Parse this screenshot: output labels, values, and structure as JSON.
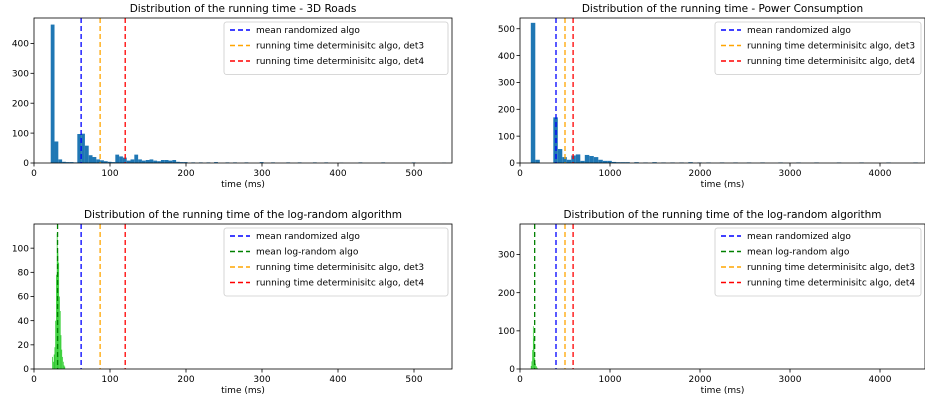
{
  "chart_data": [
    {
      "type": "histogram",
      "title": "Distribution of the running time - 3D Roads",
      "xlabel": "time (ms)",
      "ylabel": "",
      "xlim": [
        0,
        550
      ],
      "ylim": [
        0,
        485
      ],
      "xticks": [
        0,
        100,
        200,
        300,
        400,
        500
      ],
      "yticks": [
        0,
        100,
        200,
        300,
        400
      ],
      "grid": false,
      "legend_position": "top-right",
      "bin_width": 5,
      "histograms": [
        {
          "color": "#1f77b4",
          "bins": [
            [
              22,
              463
            ],
            [
              27,
              72
            ],
            [
              32,
              12
            ],
            [
              37,
              4
            ],
            [
              42,
              3
            ],
            [
              47,
              3
            ],
            [
              52,
              2
            ],
            [
              57,
              97
            ],
            [
              62,
              98
            ],
            [
              67,
              58
            ],
            [
              72,
              26
            ],
            [
              77,
              20
            ],
            [
              82,
              12
            ],
            [
              87,
              9
            ],
            [
              92,
              6
            ],
            [
              97,
              4
            ],
            [
              102,
              3
            ],
            [
              107,
              28
            ],
            [
              112,
              22
            ],
            [
              117,
              18
            ],
            [
              122,
              8
            ],
            [
              127,
              12
            ],
            [
              132,
              28
            ],
            [
              137,
              12
            ],
            [
              142,
              8
            ],
            [
              147,
              10
            ],
            [
              152,
              12
            ],
            [
              157,
              8
            ],
            [
              162,
              6
            ],
            [
              167,
              10
            ],
            [
              172,
              10
            ],
            [
              177,
              8
            ],
            [
              182,
              10
            ],
            [
              187,
              4
            ],
            [
              192,
              3
            ],
            [
              197,
              3
            ],
            [
              207,
              2
            ],
            [
              217,
              2
            ],
            [
              227,
              2
            ],
            [
              237,
              3
            ],
            [
              252,
              2
            ],
            [
              262,
              2
            ],
            [
              277,
              2
            ],
            [
              297,
              3
            ],
            [
              312,
              2
            ],
            [
              332,
              2
            ],
            [
              347,
              2
            ],
            [
              367,
              2
            ],
            [
              382,
              2
            ],
            [
              402,
              1
            ],
            [
              427,
              2
            ],
            [
              457,
              2
            ],
            [
              497,
              2
            ],
            [
              537,
              1
            ]
          ]
        }
      ],
      "vlines": [
        {
          "x": 62,
          "color": "#0000ff",
          "label": "mean randomized algo"
        },
        {
          "x": 87,
          "color": "#ffa500",
          "label": "running time determinisitc algo, det3"
        },
        {
          "x": 120,
          "color": "#ff0000",
          "label": "running time determinisitc algo, det4"
        }
      ]
    },
    {
      "type": "histogram",
      "title": "Distribution of the running time - Power Consumption",
      "xlabel": "time (ms)",
      "ylabel": "",
      "xlim": [
        0,
        4500
      ],
      "ylim": [
        0,
        540
      ],
      "xticks": [
        0,
        1000,
        2000,
        3000,
        4000
      ],
      "yticks": [
        0,
        100,
        200,
        300,
        400,
        500
      ],
      "grid": false,
      "legend_position": "top-right",
      "bin_width": 50,
      "histograms": [
        {
          "color": "#1f77b4",
          "bins": [
            [
              120,
              522
            ],
            [
              170,
              12
            ],
            [
              370,
              170
            ],
            [
              420,
              52
            ],
            [
              470,
              22
            ],
            [
              520,
              12
            ],
            [
              570,
              28
            ],
            [
              620,
              32
            ],
            [
              670,
              8
            ],
            [
              720,
              30
            ],
            [
              770,
              26
            ],
            [
              820,
              22
            ],
            [
              870,
              12
            ],
            [
              920,
              8
            ],
            [
              970,
              8
            ],
            [
              1020,
              4
            ],
            [
              1070,
              3
            ],
            [
              1120,
              3
            ],
            [
              1170,
              3
            ],
            [
              1270,
              3
            ],
            [
              1370,
              2
            ],
            [
              1470,
              3
            ],
            [
              1570,
              2
            ],
            [
              1670,
              2
            ],
            [
              1770,
              2
            ],
            [
              1870,
              3
            ],
            [
              1970,
              2
            ],
            [
              2070,
              2
            ],
            [
              2220,
              2
            ],
            [
              2370,
              2
            ],
            [
              2520,
              2
            ],
            [
              2670,
              2
            ],
            [
              2870,
              2
            ],
            [
              3070,
              2
            ],
            [
              3270,
              2
            ],
            [
              3520,
              2
            ],
            [
              3770,
              2
            ],
            [
              4070,
              2
            ],
            [
              4370,
              2
            ]
          ]
        }
      ],
      "vlines": [
        {
          "x": 400,
          "color": "#0000ff",
          "label": "mean randomized algo"
        },
        {
          "x": 500,
          "color": "#ffa500",
          "label": "running time determinisitc algo, det3"
        },
        {
          "x": 590,
          "color": "#ff0000",
          "label": "running time determinisitc algo, det4"
        }
      ]
    },
    {
      "type": "histogram",
      "title": "Distribution of the running time of the log-random algorithm",
      "xlabel": "time (ms)",
      "ylabel": "",
      "xlim": [
        0,
        550
      ],
      "ylim": [
        0,
        120
      ],
      "xticks": [
        0,
        100,
        200,
        300,
        400,
        500
      ],
      "yticks": [
        0,
        20,
        40,
        60,
        80,
        100
      ],
      "grid": false,
      "legend_position": "top-right",
      "bin_width": 1,
      "histograms": [
        {
          "color": "#2ecc2e",
          "bins": [
            [
              24,
              10
            ],
            [
              25,
              6
            ],
            [
              26,
              12
            ],
            [
              27,
              18
            ],
            [
              28,
              40
            ],
            [
              29,
              78
            ],
            [
              30,
              112
            ],
            [
              31,
              96
            ],
            [
              32,
              88
            ],
            [
              33,
              60
            ],
            [
              34,
              48
            ],
            [
              35,
              28
            ],
            [
              36,
              16
            ],
            [
              37,
              10
            ],
            [
              38,
              6
            ],
            [
              39,
              3
            ],
            [
              40,
              2
            ]
          ]
        }
      ],
      "vlines": [
        {
          "x": 62,
          "color": "#0000ff",
          "label": "mean randomized algo"
        },
        {
          "x": 31,
          "color": "#008000",
          "label": "mean log-random algo"
        },
        {
          "x": 87,
          "color": "#ffa500",
          "label": "running time determinisitc algo, det3"
        },
        {
          "x": 120,
          "color": "#ff0000",
          "label": "running time determinisitc algo, det4"
        }
      ]
    },
    {
      "type": "histogram",
      "title": "Distribution of the running time of the log-random algorithm",
      "xlabel": "time (ms)",
      "ylabel": "",
      "xlim": [
        0,
        4500
      ],
      "ylim": [
        0,
        380
      ],
      "xticks": [
        0,
        1000,
        2000,
        3000,
        4000
      ],
      "yticks": [
        0,
        100,
        200,
        300
      ],
      "grid": false,
      "legend_position": "top-right",
      "bin_width": 8,
      "histograms": [
        {
          "color": "#2ecc2e",
          "bins": [
            [
              120,
              8
            ],
            [
              128,
              20
            ],
            [
              136,
              50
            ],
            [
              144,
              112
            ],
            [
              152,
              80
            ],
            [
              160,
              28
            ],
            [
              168,
              14
            ],
            [
              176,
              8
            ],
            [
              184,
              4
            ],
            [
              192,
              2
            ]
          ]
        }
      ],
      "vlines": [
        {
          "x": 400,
          "color": "#0000ff",
          "label": "mean randomized algo"
        },
        {
          "x": 163,
          "color": "#008000",
          "label": "mean log-random algo"
        },
        {
          "x": 500,
          "color": "#ffa500",
          "label": "running time determinisitc algo, det3"
        },
        {
          "x": 590,
          "color": "#ff0000",
          "label": "running time determinisitc algo, det4"
        }
      ]
    }
  ]
}
